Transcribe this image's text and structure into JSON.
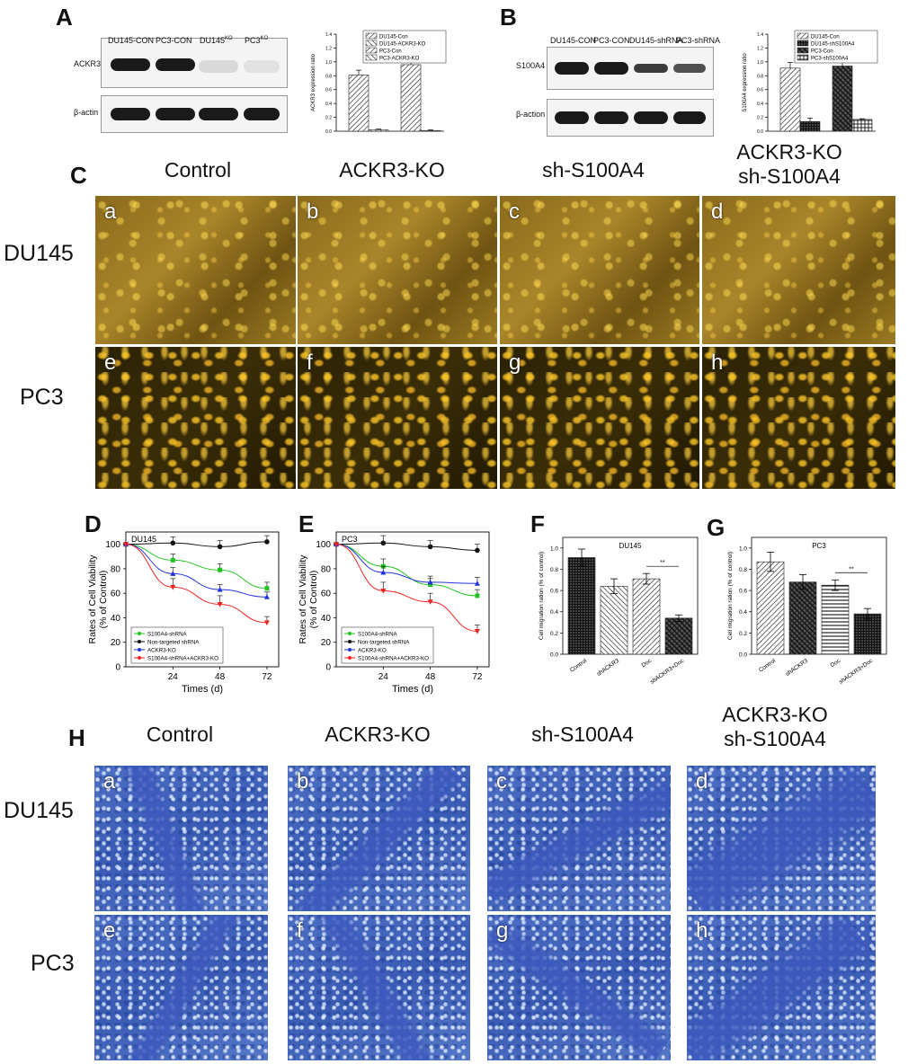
{
  "panelA": {
    "letter": "A",
    "blot_lanes": [
      "DU145-CON",
      "PC3-CON",
      "DU145",
      "PC3"
    ],
    "ko_sup": "KO",
    "blot_rows": [
      "ACKR3",
      "β-actin"
    ],
    "band_intensity": [
      1,
      1,
      0.15,
      0.1
    ]
  },
  "panelB": {
    "letter": "B",
    "blot_lanes": [
      "DU145-CON",
      "PC3-CON",
      "DU145-shRNA",
      "PC3-shRNA"
    ],
    "blot_rows": [
      "S100A4",
      "β-action"
    ],
    "band_intensity": [
      1,
      1,
      0.6,
      0.45
    ]
  },
  "panelC": {
    "letter": "C",
    "col_titles": [
      "Control",
      "ACKR3-KO",
      "sh-S100A4",
      "ACKR3-KO\nsh-S100A4"
    ],
    "rows": [
      "DU145",
      "PC3"
    ],
    "letters": [
      "a",
      "b",
      "c",
      "d",
      "e",
      "f",
      "g",
      "h"
    ]
  },
  "panelH": {
    "letter": "H",
    "col_titles": [
      "Control",
      "ACKR3-KO",
      "sh-S100A4",
      "ACKR3-KO\nsh-S100A4"
    ],
    "rows": [
      "DU145",
      "PC3"
    ],
    "letters": [
      "a",
      "b",
      "c",
      "d",
      "e",
      "f",
      "g",
      "h"
    ]
  },
  "panel_letters": {
    "D": "D",
    "E": "E",
    "F": "F",
    "G": "G"
  },
  "chart_data": [
    {
      "id": "A-bar",
      "type": "bar",
      "ylabel": "ACKR3 expression ratio",
      "ylim": [
        0,
        1.4
      ],
      "yticks": [
        "0.0",
        "0.2",
        "0.4",
        "0.6",
        "0.8",
        "1.0",
        "1.2",
        "1.4"
      ],
      "legend": [
        "DU145-Con",
        "DU145-ACKR3-KO",
        "PC3-Con",
        "PC3-ACKR3-KO"
      ],
      "groups": [
        {
          "values": [
            0.81,
            0.02
          ],
          "errors": [
            0.07,
            0.01
          ]
        },
        {
          "values": [
            0.96,
            0.01
          ],
          "errors": [
            0.06,
            0.01
          ]
        }
      ]
    },
    {
      "id": "B-bar",
      "type": "bar",
      "ylabel": "S100A4 expression ratio",
      "ylim": [
        0,
        1.4
      ],
      "yticks": [
        "0.0",
        "0.2",
        "0.4",
        "0.6",
        "0.8",
        "1.0",
        "1.2",
        "1.4"
      ],
      "legend": [
        "DU145-Con",
        "DU145-shS100A4",
        "PC3-Con",
        "PC3-shS100A4"
      ],
      "groups": [
        {
          "values": [
            0.91,
            0.14
          ],
          "errors": [
            0.08,
            0.05
          ]
        },
        {
          "values": [
            0.94,
            0.17
          ],
          "errors": [
            0.07,
            0.01
          ]
        }
      ]
    },
    {
      "id": "D-line",
      "type": "line",
      "title": "DU145",
      "xlabel": "Times (d)",
      "ylabel": "Rates of Cell Viability\n(% of Control)",
      "xticks": [
        "24",
        "48",
        "72"
      ],
      "yticks": [
        "0",
        "20",
        "40",
        "60",
        "80",
        "100"
      ],
      "xlim": [
        0,
        78
      ],
      "ylim": [
        0,
        110
      ],
      "x": [
        0,
        24,
        48,
        72
      ],
      "series": [
        {
          "name": "S100A4-shRNA",
          "color": "#22c222",
          "marker": "square",
          "values": [
            100,
            87,
            79,
            64
          ],
          "errors": [
            0,
            5,
            5,
            5
          ]
        },
        {
          "name": "Non-targeted shRNA",
          "color": "#111111",
          "marker": "circle",
          "values": [
            100,
            101,
            98,
            102
          ],
          "errors": [
            0,
            5,
            5,
            5
          ]
        },
        {
          "name": "ACKR3-KO",
          "color": "#2233dd",
          "marker": "triangle",
          "values": [
            100,
            76,
            63,
            57
          ],
          "errors": [
            0,
            5,
            4,
            4
          ]
        },
        {
          "name": "S100A4-shRNA+ACKR3-KO",
          "color": "#ee2222",
          "marker": "tri-down",
          "values": [
            100,
            65,
            51,
            36
          ],
          "errors": [
            0,
            7,
            7,
            5
          ]
        }
      ]
    },
    {
      "id": "E-line",
      "type": "line",
      "title": "PC3",
      "xlabel": "Times (d)",
      "ylabel": "Rates of Cell Viability\n(% of Control)",
      "xticks": [
        "24",
        "48",
        "72"
      ],
      "yticks": [
        "0",
        "20",
        "40",
        "60",
        "80",
        "100"
      ],
      "xlim": [
        0,
        78
      ],
      "ylim": [
        0,
        110
      ],
      "x": [
        0,
        24,
        48,
        72
      ],
      "series": [
        {
          "name": "S100A4-shRNA",
          "color": "#22c222",
          "marker": "square",
          "values": [
            100,
            82,
            67,
            58
          ],
          "errors": [
            0,
            6,
            5,
            5
          ]
        },
        {
          "name": "Non-targeted shRNA",
          "color": "#111111",
          "marker": "circle",
          "values": [
            100,
            101,
            98,
            95
          ],
          "errors": [
            0,
            6,
            5,
            5
          ]
        },
        {
          "name": "ACKR3-KO",
          "color": "#2233dd",
          "marker": "triangle",
          "values": [
            100,
            77,
            69,
            68
          ],
          "errors": [
            0,
            5,
            5,
            5
          ]
        },
        {
          "name": "S100A4-shRNA+ACKR3-KO",
          "color": "#ee2222",
          "marker": "tri-down",
          "values": [
            100,
            62,
            53,
            29
          ],
          "errors": [
            0,
            7,
            7,
            5
          ]
        }
      ]
    },
    {
      "id": "F-bar",
      "type": "bar",
      "title": "DU145",
      "ylabel": "Cell migration ration (% of control)",
      "ylim": [
        0,
        1.1
      ],
      "yticks": [
        "0.0",
        "0.2",
        "0.4",
        "0.6",
        "0.8",
        "1.0"
      ],
      "categories": [
        "Control",
        "shACKR3",
        "Doc",
        "shACKR3+Doc"
      ],
      "values": [
        0.91,
        0.64,
        0.71,
        0.34
      ],
      "errors": [
        0.08,
        0.07,
        0.05,
        0.03
      ],
      "significance": "**"
    },
    {
      "id": "G-bar",
      "type": "bar",
      "title": "PC3",
      "ylabel": "Cell migration ration (% of control)",
      "ylim": [
        0,
        1.1
      ],
      "yticks": [
        "0.0",
        "0.2",
        "0.4",
        "0.6",
        "0.8",
        "1.0"
      ],
      "categories": [
        "Control",
        "shACKR3",
        "Doc",
        "shACKR3+Doc"
      ],
      "values": [
        0.87,
        0.68,
        0.65,
        0.38
      ],
      "errors": [
        0.09,
        0.07,
        0.05,
        0.05
      ],
      "significance": "**"
    }
  ]
}
